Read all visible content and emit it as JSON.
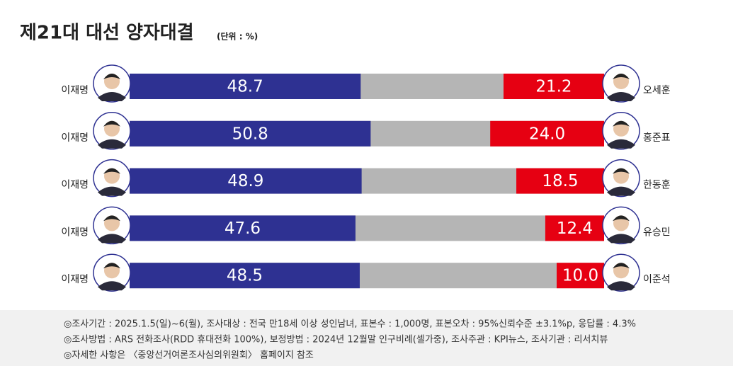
{
  "chart_data": {
    "type": "bar",
    "orientation": "horizontal",
    "stacked": "diverging",
    "title": "제21대 대선 양자대결",
    "subtitle": "(단위 : %)",
    "left_labels": [
      "이재명",
      "이재명",
      "이재명",
      "이재명",
      "이재명"
    ],
    "right_labels": [
      "오세훈",
      "홍준표",
      "한동훈",
      "유승민",
      "이준석"
    ],
    "xlim": [
      0,
      100
    ],
    "background_color": "#b5b5b5",
    "series": [
      {
        "color": "#2e3192",
        "side": "left",
        "values": [
          48.7,
          50.8,
          48.9,
          47.6,
          48.5
        ],
        "value_labels": [
          "48.7",
          "50.8",
          "48.9",
          "47.6",
          "48.5"
        ]
      },
      {
        "color": "#e60012",
        "side": "right",
        "values": [
          21.2,
          24.0,
          18.5,
          12.4,
          10.0
        ],
        "value_labels": [
          "21.2",
          "24.0",
          "18.5",
          "12.4",
          "10.0"
        ]
      }
    ],
    "notes": [
      "◎조사기간 : 2025.1.5(일)~6(월), 조사대상 : 전국 만18세 이상 성인남녀, 표본수 : 1,000명, 표본오차 : 95%신뢰수준 ±3.1%p, 응답률 : 4.3%",
      "◎조사방법 : ARS 전화조사(RDD 휴대전화 100%), 보정방법 : 2024년 12월말 인구비례(셀가중), 조사주관 : KPI뉴스, 조사기관 : 리서치뷰",
      "◎자세한 사항은 〈중앙선거여론조사심의위원회〉 홈페이지 참조"
    ]
  }
}
